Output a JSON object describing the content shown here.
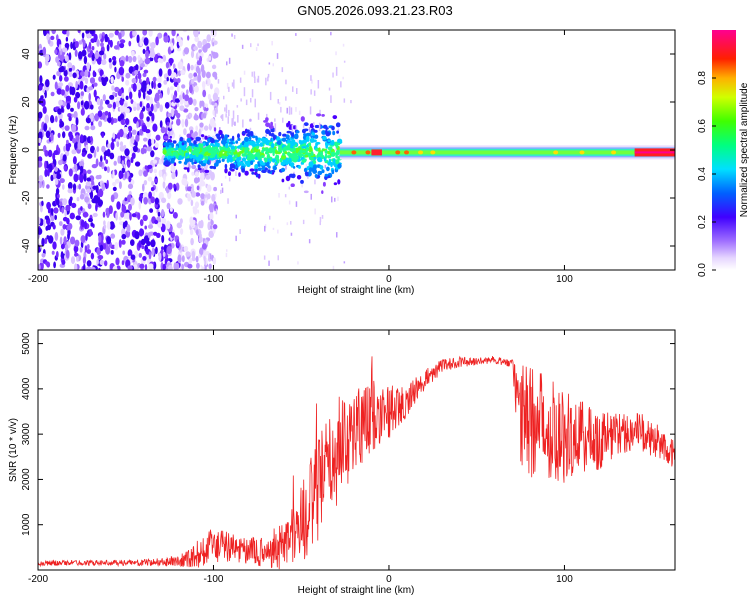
{
  "title": "GN05.2026.093.21.23.R03",
  "chart_data": [
    {
      "type": "heatmap",
      "name": "spectrogram",
      "xlabel": "Height of straight line (km)",
      "ylabel": "Frequency (Hz)",
      "xlim": [
        -200,
        163
      ],
      "ylim": [
        -50,
        50
      ],
      "xticks": [
        -200,
        -100,
        0,
        100
      ],
      "xtick_labels": [
        "-200",
        "-100",
        "0",
        "100"
      ],
      "yticks": [
        -40,
        -20,
        0,
        20,
        40
      ],
      "ytick_labels": [
        "-40",
        "-20",
        "0",
        "20",
        "40"
      ],
      "description_points": {
        "noise_region_km": [
          -200,
          -110
        ],
        "signal_start_km": -128,
        "turbulent_segment_km": [
          -128,
          -28
        ],
        "stable_carrier_km": [
          -28,
          163
        ],
        "carrier_frequency_hz": -1
      }
    },
    {
      "type": "line",
      "name": "snr",
      "xlabel": "Height of straight line (km)",
      "ylabel": "SNR (10 * v/v)",
      "xlim": [
        -200,
        163
      ],
      "ylim": [
        0,
        5300
      ],
      "xticks": [
        -200,
        -100,
        0,
        100
      ],
      "xtick_labels": [
        "-200",
        "-100",
        "0",
        "100"
      ],
      "yticks": [
        1000,
        2000,
        3000,
        4000,
        5000
      ],
      "ytick_labels": [
        "1000",
        "2000",
        "3000",
        "4000",
        "5000"
      ],
      "color": "#ee2222",
      "x": [
        -200,
        -180,
        -160,
        -140,
        -120,
        -110,
        -100,
        -90,
        -80,
        -70,
        -60,
        -50,
        -40,
        -30,
        -20,
        -10,
        0,
        10,
        20,
        30,
        40,
        50,
        60,
        70,
        75,
        80,
        90,
        100,
        110,
        120,
        130,
        140,
        150,
        163
      ],
      "base": [
        150,
        160,
        160,
        160,
        200,
        320,
        550,
        500,
        420,
        380,
        600,
        1000,
        1800,
        2600,
        3100,
        3400,
        3500,
        3700,
        4200,
        4500,
        4600,
        4600,
        4650,
        4550,
        3400,
        3300,
        3200,
        3000,
        2900,
        2900,
        3000,
        3100,
        2900,
        2600
      ],
      "amp": [
        60,
        60,
        60,
        70,
        120,
        300,
        400,
        350,
        300,
        350,
        600,
        900,
        1200,
        1200,
        1000,
        800,
        600,
        350,
        250,
        150,
        120,
        80,
        80,
        100,
        1200,
        1300,
        1200,
        1100,
        900,
        700,
        500,
        450,
        400,
        350
      ]
    }
  ],
  "colorbar": {
    "label": "Normalized spectral amplitude",
    "ticks": [
      0.0,
      0.2,
      0.4,
      0.6,
      0.8
    ],
    "tick_labels": [
      "0.0",
      "0.2",
      "0.4",
      "0.6",
      "0.8"
    ],
    "range": [
      0,
      1
    ]
  }
}
